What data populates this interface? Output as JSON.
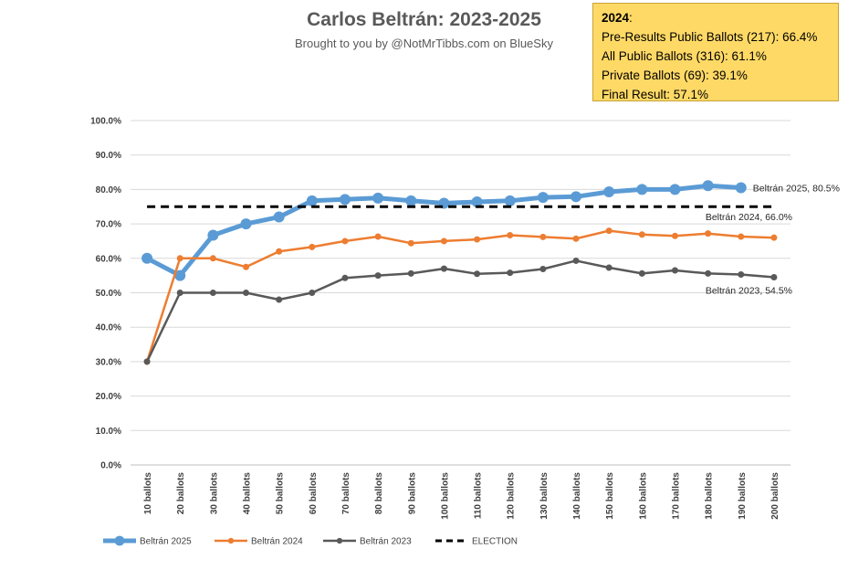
{
  "header": {
    "title": "Carlos Beltrán: 2023-2025",
    "subtitle": "Brought to you by @NotMrTibbs.com on BlueSky"
  },
  "info_box": {
    "year_label": "2024",
    "year_suffix": ":",
    "lines": [
      "Pre-Results Public Ballots (217): 66.4%",
      "All Public Ballots (316): 61.1%",
      "Private Ballots (69): 39.1%",
      "Final Result: 57.1%"
    ]
  },
  "chart_data": {
    "type": "line",
    "title": "Carlos Beltrán: 2023-2025",
    "subtitle": "Brought to you by @NotMrTibbs.com on BlueSky",
    "xlabel": "",
    "ylabel": "",
    "ylim": [
      0,
      100
    ],
    "y_ticks": [
      0,
      10,
      20,
      30,
      40,
      50,
      60,
      70,
      80,
      90,
      100
    ],
    "y_tick_labels": [
      "0.0%",
      "10.0%",
      "20.0%",
      "30.0%",
      "40.0%",
      "50.0%",
      "60.0%",
      "70.0%",
      "80.0%",
      "90.0%",
      "100.0%"
    ],
    "grid": true,
    "legend_position": "bottom-left",
    "categories": [
      "10 ballots",
      "20 ballots",
      "30 ballots",
      "40 ballots",
      "50 ballots",
      "60 ballots",
      "70 ballots",
      "80 ballots",
      "90 ballots",
      "100 ballots",
      "110 ballots",
      "120 ballots",
      "130 ballots",
      "140 ballots",
      "150 ballots",
      "160 ballots",
      "170 ballots",
      "180 ballots",
      "190 ballots",
      "200 ballots"
    ],
    "series": [
      {
        "name": "Beltrán 2025",
        "color": "#5b9bd5",
        "style": "thick",
        "values": [
          60.0,
          55.0,
          66.7,
          70.0,
          72.0,
          76.7,
          77.1,
          77.5,
          76.7,
          76.0,
          76.4,
          76.7,
          77.7,
          77.9,
          79.3,
          80.0,
          80.0,
          81.1,
          80.5,
          null
        ],
        "end_label": "Beltrán 2025, 80.5%"
      },
      {
        "name": "Beltrán 2024",
        "color": "#ed7d31",
        "style": "medium",
        "values": [
          30.0,
          60.0,
          60.0,
          57.5,
          62.0,
          63.3,
          65.0,
          66.3,
          64.4,
          65.0,
          65.5,
          66.7,
          66.2,
          65.7,
          68.0,
          66.9,
          66.5,
          67.2,
          66.3,
          66.0
        ],
        "end_label": "Beltrán 2024, 66.0%"
      },
      {
        "name": "Beltrán 2023",
        "color": "#595959",
        "style": "medium",
        "values": [
          30.0,
          50.0,
          50.0,
          50.0,
          48.0,
          50.0,
          54.3,
          55.0,
          55.6,
          57.0,
          55.5,
          55.8,
          56.9,
          59.3,
          57.3,
          55.6,
          56.5,
          55.6,
          55.3,
          54.5
        ],
        "end_label": "Beltrán 2023, 54.5%"
      },
      {
        "name": "ELECTION",
        "color": "#000000",
        "style": "dashed",
        "values": [
          75,
          75,
          75,
          75,
          75,
          75,
          75,
          75,
          75,
          75,
          75,
          75,
          75,
          75,
          75,
          75,
          75,
          75,
          75,
          75
        ]
      }
    ]
  }
}
